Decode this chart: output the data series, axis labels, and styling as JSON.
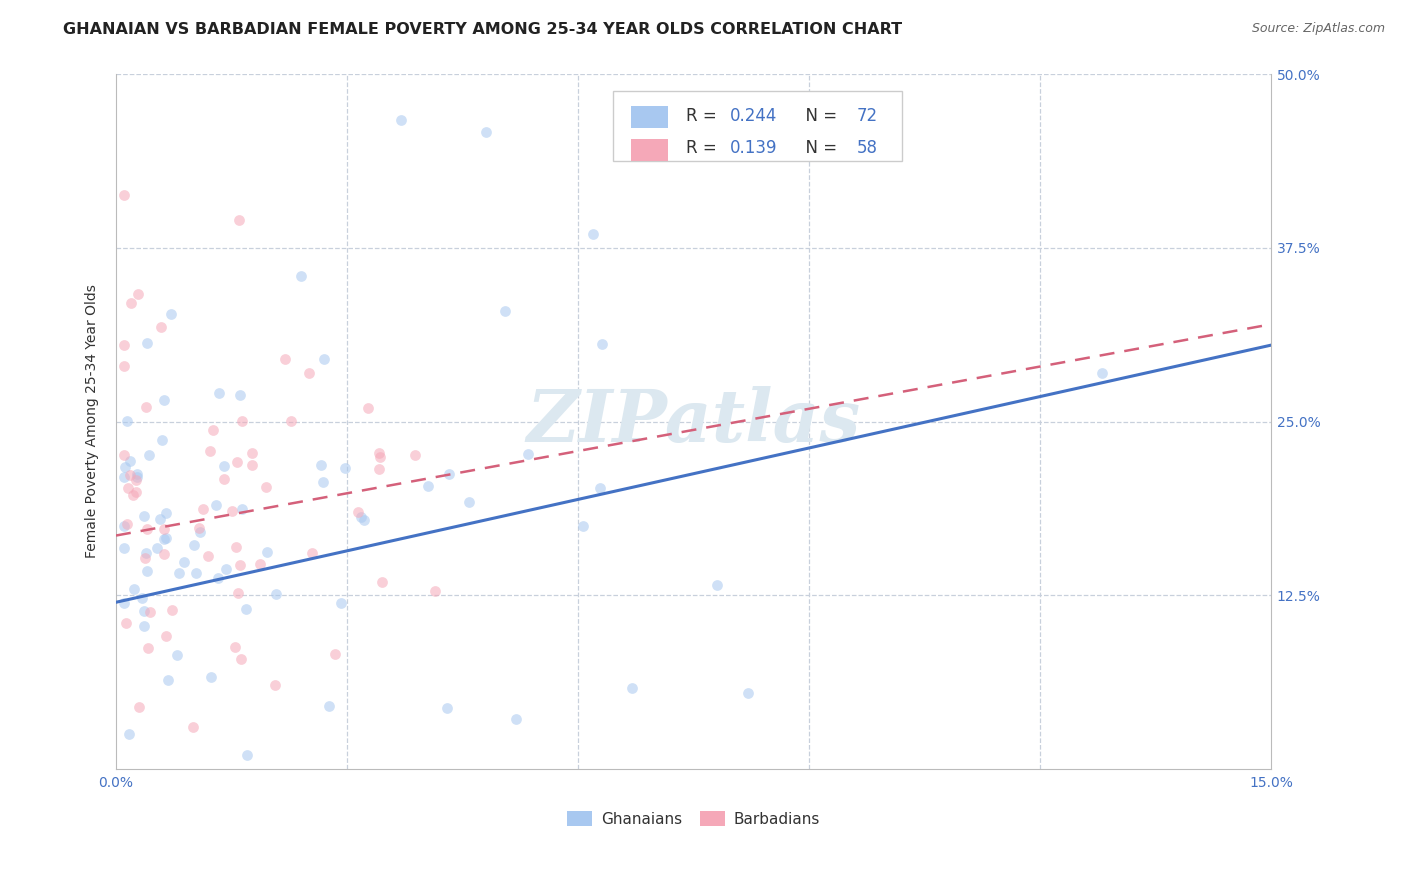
{
  "title": "GHANAIAN VS BARBADIAN FEMALE POVERTY AMONG 25-34 YEAR OLDS CORRELATION CHART",
  "source": "Source: ZipAtlas.com",
  "ylabel": "Female Poverty Among 25-34 Year Olds",
  "xlim": [
    0.0,
    0.15
  ],
  "ylim": [
    0.0,
    0.5
  ],
  "ghanaian_R": 0.244,
  "ghanaian_N": 72,
  "barbadian_R": 0.139,
  "barbadian_N": 58,
  "scatter_alpha": 0.55,
  "ghanaian_color": "#a8c8f0",
  "barbadian_color": "#f5a8b8",
  "ghanaian_line_color": "#4472c4",
  "barbadian_line_color": "#d4607a",
  "watermark": "ZIPatlas",
  "watermark_color": "#dce8f0",
  "title_fontsize": 11.5,
  "axis_label_fontsize": 10,
  "tick_fontsize": 10,
  "legend_fontsize": 12
}
